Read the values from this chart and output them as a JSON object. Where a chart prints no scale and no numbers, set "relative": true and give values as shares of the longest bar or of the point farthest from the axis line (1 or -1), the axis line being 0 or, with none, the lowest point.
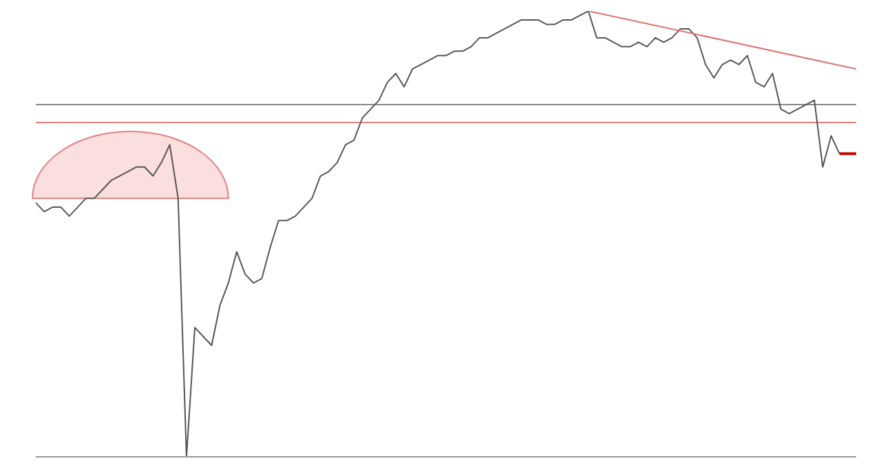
{
  "chart_data": {
    "type": "line",
    "relative": true,
    "categories": [
      null,
      null,
      null,
      null,
      null,
      null,
      null,
      null,
      null,
      null,
      null,
      null,
      null,
      null,
      null,
      null,
      null,
      null,
      null,
      null,
      null,
      null,
      null,
      null,
      null,
      null,
      null,
      null,
      null,
      null,
      null,
      null,
      null,
      null,
      null,
      null,
      null,
      null,
      null,
      null,
      null,
      null,
      null,
      null,
      null,
      null,
      null,
      null,
      null,
      null,
      null,
      null,
      null,
      null,
      null,
      null,
      null,
      null,
      null,
      null,
      null,
      null,
      null,
      null,
      null,
      null,
      null,
      null,
      null,
      null,
      null,
      null,
      null,
      null,
      null,
      null,
      null,
      null,
      null,
      null,
      null,
      null,
      null,
      null,
      null,
      null,
      null,
      null,
      null,
      null,
      null,
      null,
      null,
      null,
      null,
      null,
      null,
      null,
      null
    ],
    "series": [
      {
        "color": "#555555",
        "values": [
          0.57,
          0.55,
          0.56,
          0.56,
          0.54,
          0.56,
          0.58,
          0.58,
          0.6,
          0.62,
          0.63,
          0.64,
          0.65,
          0.65,
          0.63,
          0.66,
          0.7,
          0.58,
          0,
          0.29,
          0.27,
          0.25,
          0.34,
          0.39,
          0.46,
          0.41,
          0.39,
          0.4,
          0.47,
          0.53,
          0.53,
          0.54,
          0.56,
          0.58,
          0.63,
          0.64,
          0.66,
          0.7,
          0.71,
          0.76,
          0.78,
          0.8,
          0.84,
          0.86,
          0.83,
          0.87,
          0.88,
          0.89,
          0.9,
          0.9,
          0.91,
          0.91,
          0.92,
          0.94,
          0.94,
          0.95,
          0.96,
          0.97,
          0.98,
          0.98,
          0.98,
          0.97,
          0.97,
          0.98,
          0.98,
          0.99,
          1,
          0.94,
          0.94,
          0.93,
          0.92,
          0.92,
          0.93,
          0.92,
          0.94,
          0.93,
          0.94,
          0.96,
          0.96,
          0.94,
          0.88,
          0.85,
          0.88,
          0.89,
          0.88,
          0.9,
          0.84,
          0.83,
          0.86,
          0.78,
          0.77,
          0.78,
          0.79,
          0.8,
          0.65,
          0.72,
          0.68,
          null,
          null
        ]
      },
      {
        "color": "#e07070",
        "values": [
          null,
          null,
          null,
          null,
          null,
          null,
          null,
          null,
          null,
          null,
          null,
          null,
          null,
          null,
          null,
          null,
          null,
          null,
          null,
          null,
          null,
          null,
          null,
          null,
          null,
          null,
          null,
          null,
          null,
          null,
          null,
          null,
          null,
          null,
          null,
          null,
          null,
          null,
          null,
          null,
          null,
          null,
          null,
          null,
          null,
          null,
          null,
          null,
          null,
          null,
          null,
          null,
          null,
          null,
          null,
          null,
          null,
          null,
          null,
          null,
          null,
          null,
          null,
          null,
          null,
          null,
          1,
          null,
          null,
          null,
          null,
          null,
          null,
          null,
          null,
          null,
          null,
          null,
          null,
          null,
          null,
          null,
          null,
          null,
          null,
          null,
          null,
          null,
          null,
          null,
          null,
          null,
          null,
          null,
          null,
          null,
          null,
          null,
          0.87
        ]
      },
      {
        "color": "#cc0000",
        "values": [
          null,
          null,
          null,
          null,
          null,
          null,
          null,
          null,
          null,
          null,
          null,
          null,
          null,
          null,
          null,
          null,
          null,
          null,
          null,
          null,
          null,
          null,
          null,
          null,
          null,
          null,
          null,
          null,
          null,
          null,
          null,
          null,
          null,
          null,
          null,
          null,
          null,
          null,
          null,
          null,
          null,
          null,
          null,
          null,
          null,
          null,
          null,
          null,
          null,
          null,
          null,
          null,
          null,
          null,
          null,
          null,
          null,
          null,
          null,
          null,
          null,
          null,
          null,
          null,
          null,
          null,
          null,
          null,
          null,
          null,
          null,
          null,
          null,
          null,
          null,
          null,
          null,
          null,
          null,
          null,
          null,
          null,
          null,
          null,
          null,
          null,
          null,
          null,
          null,
          null,
          null,
          null,
          null,
          null,
          null,
          null,
          0.68,
          null,
          0.68
        ]
      }
    ],
    "ref_lines": [
      {
        "axis": "y",
        "value": 0.79,
        "color": "#888888"
      },
      {
        "axis": "y",
        "value": 0.75,
        "color": "#e88080"
      }
    ]
  }
}
